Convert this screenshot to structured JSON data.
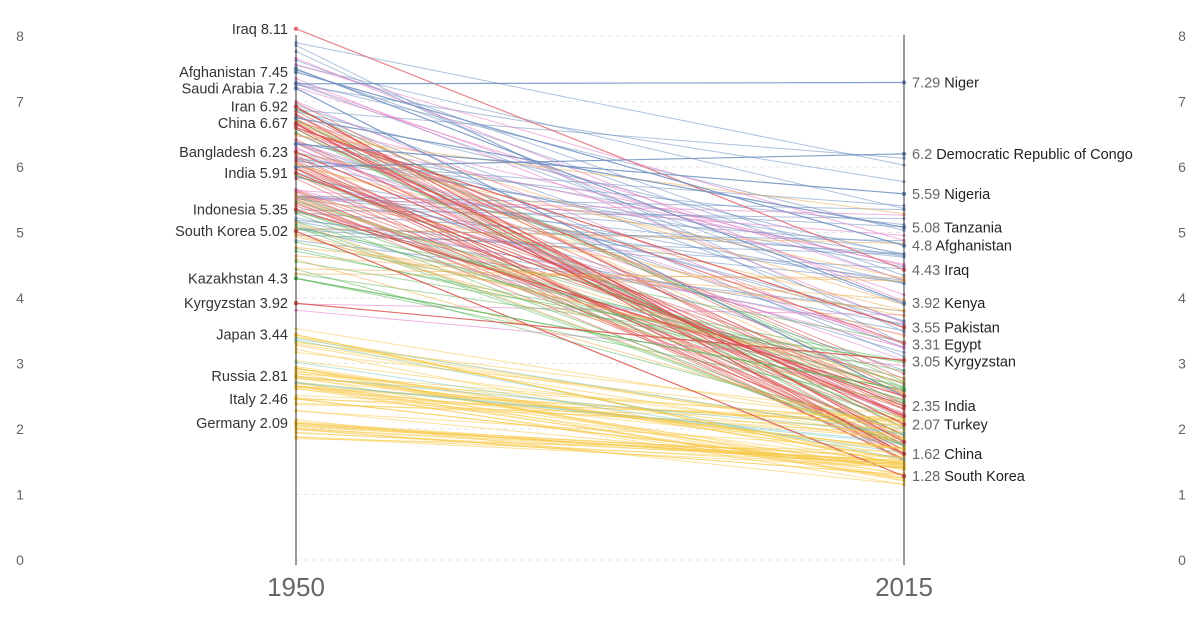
{
  "chart_data": {
    "type": "line",
    "subtype": "slope",
    "x": [
      "1950",
      "2015"
    ],
    "ylim": [
      0,
      8
    ],
    "yticks": [
      "0",
      "1",
      "2",
      "3",
      "4",
      "5",
      "6",
      "7",
      "8"
    ],
    "grid": true,
    "start_labels": [
      {
        "name": "Iraq",
        "value": 8.11,
        "display": "Iraq 8.11"
      },
      {
        "name": "Afghanistan",
        "value": 7.45,
        "display": "Afghanistan 7.45"
      },
      {
        "name": "Saudi Arabia",
        "value": 7.2,
        "display": "Saudi Arabia 7.2"
      },
      {
        "name": "Iran",
        "value": 6.92,
        "display": "Iran 6.92"
      },
      {
        "name": "China",
        "value": 6.67,
        "display": "China 6.67"
      },
      {
        "name": "Bangladesh",
        "value": 6.23,
        "display": "Bangladesh 6.23"
      },
      {
        "name": "India",
        "value": 5.91,
        "display": "India 5.91"
      },
      {
        "name": "Indonesia",
        "value": 5.35,
        "display": "Indonesia 5.35"
      },
      {
        "name": "South Korea",
        "value": 5.02,
        "display": "South Korea 5.02"
      },
      {
        "name": "Kazakhstan",
        "value": 4.3,
        "display": "Kazakhstan 4.3"
      },
      {
        "name": "Kyrgyzstan",
        "value": 3.92,
        "display": "Kyrgyzstan 3.92"
      },
      {
        "name": "Japan",
        "value": 3.44,
        "display": "Japan 3.44"
      },
      {
        "name": "Russia",
        "value": 2.81,
        "display": "Russia 2.81"
      },
      {
        "name": "Italy",
        "value": 2.46,
        "display": "Italy 2.46"
      },
      {
        "name": "Germany",
        "value": 2.09,
        "display": "Germany 2.09"
      }
    ],
    "end_labels": [
      {
        "name": "Niger",
        "value": 7.29,
        "value_text": "7.29"
      },
      {
        "name": "Democratic Republic of Congo",
        "value": 6.2,
        "value_text": "6.2"
      },
      {
        "name": "Nigeria",
        "value": 5.59,
        "value_text": "5.59"
      },
      {
        "name": "Tanzania",
        "value": 5.08,
        "value_text": "5.08"
      },
      {
        "name": "Afghanistan",
        "value": 4.8,
        "value_text": "4.8"
      },
      {
        "name": "Iraq",
        "value": 4.43,
        "value_text": "4.43"
      },
      {
        "name": "Kenya",
        "value": 3.92,
        "value_text": "3.92"
      },
      {
        "name": "Pakistan",
        "value": 3.55,
        "value_text": "3.55"
      },
      {
        "name": "Egypt",
        "value": 3.31,
        "value_text": "3.31"
      },
      {
        "name": "Kyrgyzstan",
        "value": 3.05,
        "value_text": "3.05"
      },
      {
        "name": "India",
        "value": 2.35,
        "value_text": "2.35"
      },
      {
        "name": "Turkey",
        "value": 2.07,
        "value_text": "2.07"
      },
      {
        "name": "China",
        "value": 1.62,
        "value_text": "1.62"
      },
      {
        "name": "South Korea",
        "value": 1.28,
        "value_text": "1.28"
      }
    ],
    "series": [
      {
        "name": "Iraq",
        "values": [
          8.11,
          4.43
        ],
        "color": "#e06c75"
      },
      {
        "name": "Afghanistan",
        "values": [
          7.45,
          4.8
        ],
        "color": "#6c8ebf"
      },
      {
        "name": "Saudi Arabia",
        "values": [
          7.2,
          2.5
        ],
        "color": "#6c8ebf"
      },
      {
        "name": "Iran",
        "values": [
          6.92,
          1.8
        ],
        "color": "#d9534f"
      },
      {
        "name": "China",
        "values": [
          6.67,
          1.62
        ],
        "color": "#d9534f"
      },
      {
        "name": "Bangladesh",
        "values": [
          6.23,
          2.2
        ],
        "color": "#d9534f"
      },
      {
        "name": "India",
        "values": [
          5.91,
          2.35
        ],
        "color": "#d9534f"
      },
      {
        "name": "Indonesia",
        "values": [
          5.35,
          2.5
        ],
        "color": "#d9534f"
      },
      {
        "name": "South Korea",
        "values": [
          5.02,
          1.28
        ],
        "color": "#d9534f"
      },
      {
        "name": "Kazakhstan",
        "values": [
          4.3,
          2.6
        ],
        "color": "#5cb85c"
      },
      {
        "name": "Kyrgyzstan",
        "values": [
          3.92,
          3.05
        ],
        "color": "#d9534f"
      },
      {
        "name": "Japan",
        "values": [
          3.44,
          1.45
        ],
        "color": "#f7c948"
      },
      {
        "name": "Russia",
        "values": [
          2.81,
          1.7
        ],
        "color": "#f7c948"
      },
      {
        "name": "Italy",
        "values": [
          2.46,
          1.4
        ],
        "color": "#f7c948"
      },
      {
        "name": "Germany",
        "values": [
          2.09,
          1.45
        ],
        "color": "#f7c948"
      },
      {
        "name": "Niger",
        "values": [
          7.27,
          7.29
        ],
        "color": "#6c8ebf"
      },
      {
        "name": "Democratic Republic of Congo",
        "values": [
          6.0,
          6.2
        ],
        "color": "#6c8ebf"
      },
      {
        "name": "Nigeria",
        "values": [
          6.35,
          5.59
        ],
        "color": "#6c8ebf"
      },
      {
        "name": "Tanzania",
        "values": [
          6.75,
          5.08
        ],
        "color": "#6c8ebf"
      },
      {
        "name": "Kenya",
        "values": [
          7.5,
          3.92
        ],
        "color": "#6c8ebf"
      },
      {
        "name": "Pakistan",
        "values": [
          6.6,
          3.55
        ],
        "color": "#d9534f"
      },
      {
        "name": "Egypt",
        "values": [
          6.6,
          3.31
        ],
        "color": "#e06c75"
      },
      {
        "name": "Turkey",
        "values": [
          6.65,
          2.07
        ],
        "color": "#d9534f"
      }
    ],
    "background_series_groups": [
      {
        "color": "#6c8ebf",
        "count": 40,
        "start": [
          4.8,
          8.0
        ],
        "end": [
          2.6,
          6.3
        ]
      },
      {
        "color": "#d9534f",
        "count": 40,
        "start": [
          5.4,
          7.0
        ],
        "end": [
          1.5,
          3.0
        ]
      },
      {
        "color": "#e377c2",
        "count": 18,
        "start": [
          3.6,
          7.7
        ],
        "end": [
          1.6,
          5.3
        ]
      },
      {
        "color": "#5cb85c",
        "count": 22,
        "start": [
          4.2,
          7.0
        ],
        "end": [
          1.7,
          3.5
        ]
      },
      {
        "color": "#f0ad4e",
        "count": 18,
        "start": [
          4.0,
          6.8
        ],
        "end": [
          1.4,
          5.5
        ]
      },
      {
        "color": "#f7c948",
        "count": 55,
        "start": [
          1.85,
          3.6
        ],
        "end": [
          1.15,
          2.2
        ]
      },
      {
        "color": "#7fc8c8",
        "count": 6,
        "start": [
          2.6,
          3.6
        ],
        "end": [
          1.5,
          2.1
        ]
      }
    ]
  }
}
